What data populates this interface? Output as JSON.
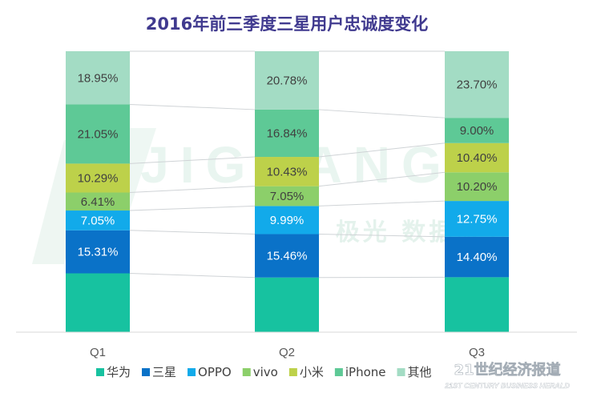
{
  "chart_data": {
    "type": "bar",
    "stacked": true,
    "normalized_percent": true,
    "title": "2016年前三季度三星用户忠诚度变化",
    "categories": [
      "Q1",
      "Q2",
      "Q3"
    ],
    "series": [
      {
        "name": "华为",
        "color": "#17c2a0",
        "values": [
          null,
          null,
          null
        ]
      },
      {
        "name": "三星",
        "color": "#0a72c8",
        "values": [
          15.31,
          15.46,
          14.4
        ]
      },
      {
        "name": "OPPO",
        "color": "#12aaea",
        "values": [
          7.05,
          9.99,
          12.75
        ]
      },
      {
        "name": "vivo",
        "color": "#8ccf6a",
        "values": [
          6.41,
          7.05,
          10.2
        ]
      },
      {
        "name": "小米",
        "color": "#bdd14a",
        "values": [
          10.29,
          10.43,
          10.4
        ]
      },
      {
        "name": "iPhone",
        "color": "#5ec996",
        "values": [
          21.05,
          16.84,
          9.0
        ]
      },
      {
        "name": "其他",
        "color": "#a3dcc4",
        "values": [
          18.95,
          20.78,
          23.7
        ]
      }
    ],
    "data_labels": [
      {
        "series": "三星",
        "labels": [
          "15.31%",
          "15.46%",
          "14.40%"
        ]
      },
      {
        "series": "OPPO",
        "labels": [
          "7.05%",
          "9.99%",
          "12.75%"
        ]
      },
      {
        "series": "vivo",
        "labels": [
          "6.41%",
          "7.05%",
          "10.20%"
        ]
      },
      {
        "series": "小米",
        "labels": [
          "10.29%",
          "10.43%",
          "10.40%"
        ]
      },
      {
        "series": "iPhone",
        "labels": [
          "21.05%",
          "16.84%",
          "9.00%"
        ]
      },
      {
        "series": "其他",
        "labels": [
          "18.95%",
          "20.78%",
          "23.70%"
        ]
      }
    ],
    "ylim": [
      0,
      100
    ],
    "legend_position": "bottom"
  },
  "watermark": {
    "text_latin": "JIGUANG",
    "text_cn": "极光 数据服务",
    "text_herald_cn": "21世纪经济报道",
    "text_herald_en": "21ST CENTURY BUSINESS HERALD"
  },
  "colors": {
    "title": "#403a8f",
    "tick_label": "#595959",
    "connector": "#cfd3d6",
    "axis": "#d9d9d9"
  }
}
